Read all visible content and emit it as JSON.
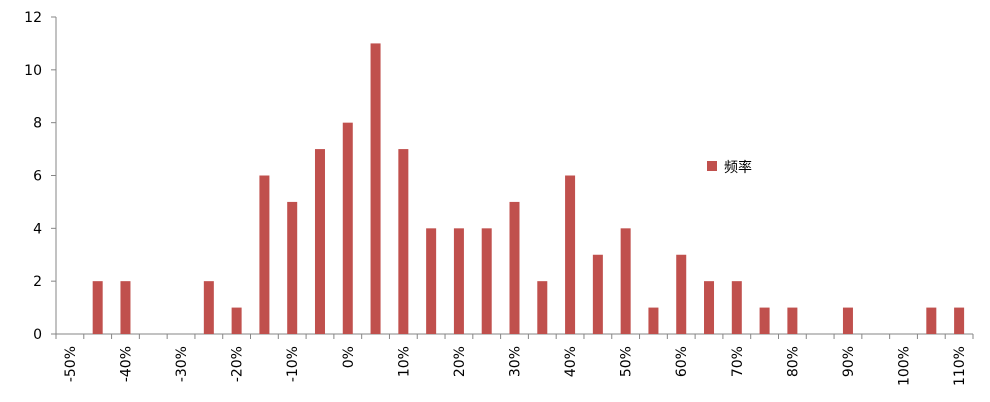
{
  "chart_data": {
    "type": "bar",
    "categories": [
      "-50%",
      null,
      "-40%",
      null,
      "-30%",
      null,
      "-20%",
      null,
      "-10%",
      null,
      "0%",
      null,
      "10%",
      null,
      "20%",
      null,
      "30%",
      null,
      "40%",
      null,
      "50%",
      null,
      "60%",
      null,
      "70%",
      null,
      "80%",
      null,
      "90%",
      null,
      "100%",
      null,
      "110%"
    ],
    "series": [
      {
        "name": "频率",
        "color": "#c0504d",
        "values": [
          0,
          2,
          2,
          0,
          0,
          2,
          1,
          6,
          5,
          7,
          8,
          11,
          7,
          4,
          4,
          4,
          5,
          2,
          6,
          3,
          4,
          1,
          3,
          2,
          2,
          1,
          1,
          0,
          1,
          0,
          0,
          1,
          1
        ]
      }
    ],
    "ylim": [
      0,
      12
    ],
    "yticks": [
      0,
      2,
      4,
      6,
      8,
      10,
      12
    ],
    "legend": "right"
  }
}
